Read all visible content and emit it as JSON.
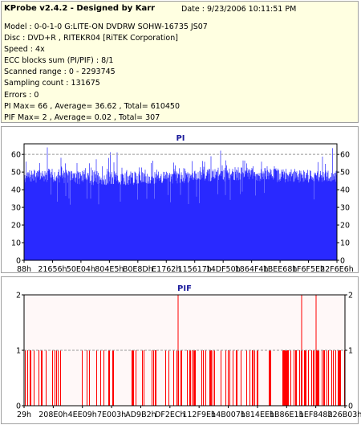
{
  "header": {
    "app_title": "KProbe v2.4.2 - Designed by Karr",
    "date": "Date : 9/23/2006 10:11:51 PM",
    "lines": [
      "Model : 0-0-1-0 G:LITE-ON DVDRW SOHW-16735 JS07",
      "Disc : DVD+R , RITEKR04 [RiTEK Corporation]",
      "Speed : 4x",
      "ECC blocks sum (PI/PIF) : 8/1",
      "Scanned range : 0 - 2293745",
      "Sampling count : 131675",
      "Errors : 0",
      "PI Max= 66 , Average= 36.62 , Total= 610450",
      "PIF Max= 2 , Average= 0.02 , Total= 307"
    ]
  },
  "chart_data": [
    {
      "type": "bar",
      "title": "PI",
      "x_tick_labels": [
        "88h",
        "21656h",
        "50E04h",
        "804E5h",
        "B0E8Dh",
        "E1762h",
        "115617h",
        "14DF50h",
        "1864F4h",
        "1BEE68h",
        "1F6F5Eh",
        "22F6E6h"
      ],
      "y_ticks": [
        0,
        10,
        20,
        30,
        40,
        50,
        60
      ],
      "ylim": [
        0,
        66
      ],
      "reference_line": 60,
      "max": 66,
      "average": 36.62,
      "series_color": "#0000ff",
      "profile": [
        {
          "position": 0.0,
          "upper": 51,
          "base": 44
        },
        {
          "position": 0.1,
          "upper": 52,
          "base": 44
        },
        {
          "position": 0.25,
          "upper": 51,
          "base": 42
        },
        {
          "position": 0.4,
          "upper": 50,
          "base": 43
        },
        {
          "position": 0.55,
          "upper": 52,
          "base": 44
        },
        {
          "position": 0.7,
          "upper": 53,
          "base": 45
        },
        {
          "position": 0.85,
          "upper": 52,
          "base": 44
        },
        {
          "position": 1.0,
          "upper": 51,
          "base": 44
        }
      ]
    },
    {
      "type": "bar",
      "title": "PIF",
      "x_tick_labels": [
        "29h",
        "208E0h",
        "4EE09h",
        "7E003h",
        "AD9B2h",
        "DF2ECh",
        "112F9Eh",
        "14B007h",
        "1814EEh",
        "1B86E1h",
        "1EF848h",
        "226B03h"
      ],
      "y_ticks": [
        0,
        1,
        2
      ],
      "ylim": [
        0,
        2
      ],
      "reference_line": 1,
      "max": 2,
      "average": 0.02,
      "series_color": "#ff0000",
      "spike_positions_value2": [
        0.48,
        0.865,
        0.91
      ]
    }
  ]
}
